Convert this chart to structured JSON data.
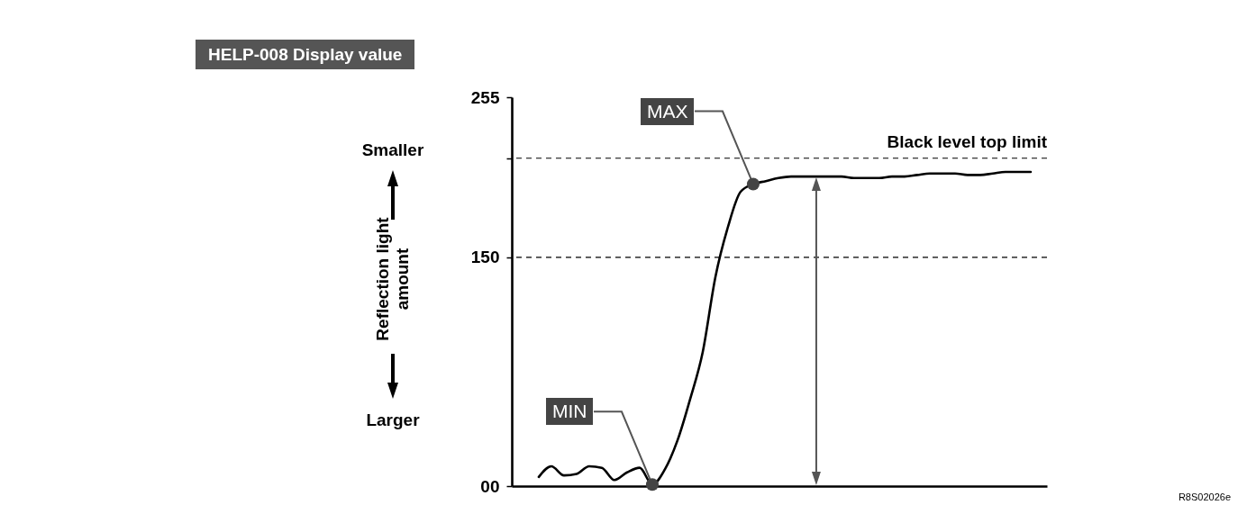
{
  "chart_data": {
    "type": "line",
    "title": "HELP-008 Display value",
    "ylabel": "Reflection light amount",
    "categories": [
      null,
      null,
      null,
      null,
      null,
      null,
      null,
      null,
      null,
      null,
      null,
      null,
      null,
      null,
      null,
      null,
      null,
      null,
      null,
      null,
      null,
      null,
      null,
      null,
      null,
      null,
      null,
      null,
      null,
      null,
      null,
      null,
      null,
      null,
      null,
      null,
      null,
      null,
      null,
      null
    ],
    "series": [
      {
        "color": "#000000",
        "values": [
          6,
          13,
          7,
          8,
          13,
          12,
          4,
          9,
          12,
          1,
          11,
          30,
          57,
          88,
          137,
          170,
          193,
          198,
          200,
          202,
          203,
          203,
          203,
          203,
          203,
          202,
          202,
          202,
          203,
          203,
          204,
          205,
          205,
          205,
          204,
          204,
          205,
          206,
          206,
          206
        ]
      }
    ],
    "ylim": [
      0,
      255
    ],
    "yticks": [
      {
        "value": 0,
        "label": "00"
      },
      150,
      {
        "value": 215,
        "label": null
      },
      255
    ],
    "tick_labels": "y",
    "ref_lines": [
      {
        "axis": "y",
        "value": 215,
        "label": "Black level top limit",
        "color": "#000000",
        "line_style": "dashed"
      },
      {
        "axis": "y",
        "value": 150,
        "color": "#000000",
        "line_style": "dashed"
      }
    ],
    "annotations": [
      "Smaller",
      "Larger",
      "R8S02026e",
      "MIN",
      "MAX"
    ]
  }
}
